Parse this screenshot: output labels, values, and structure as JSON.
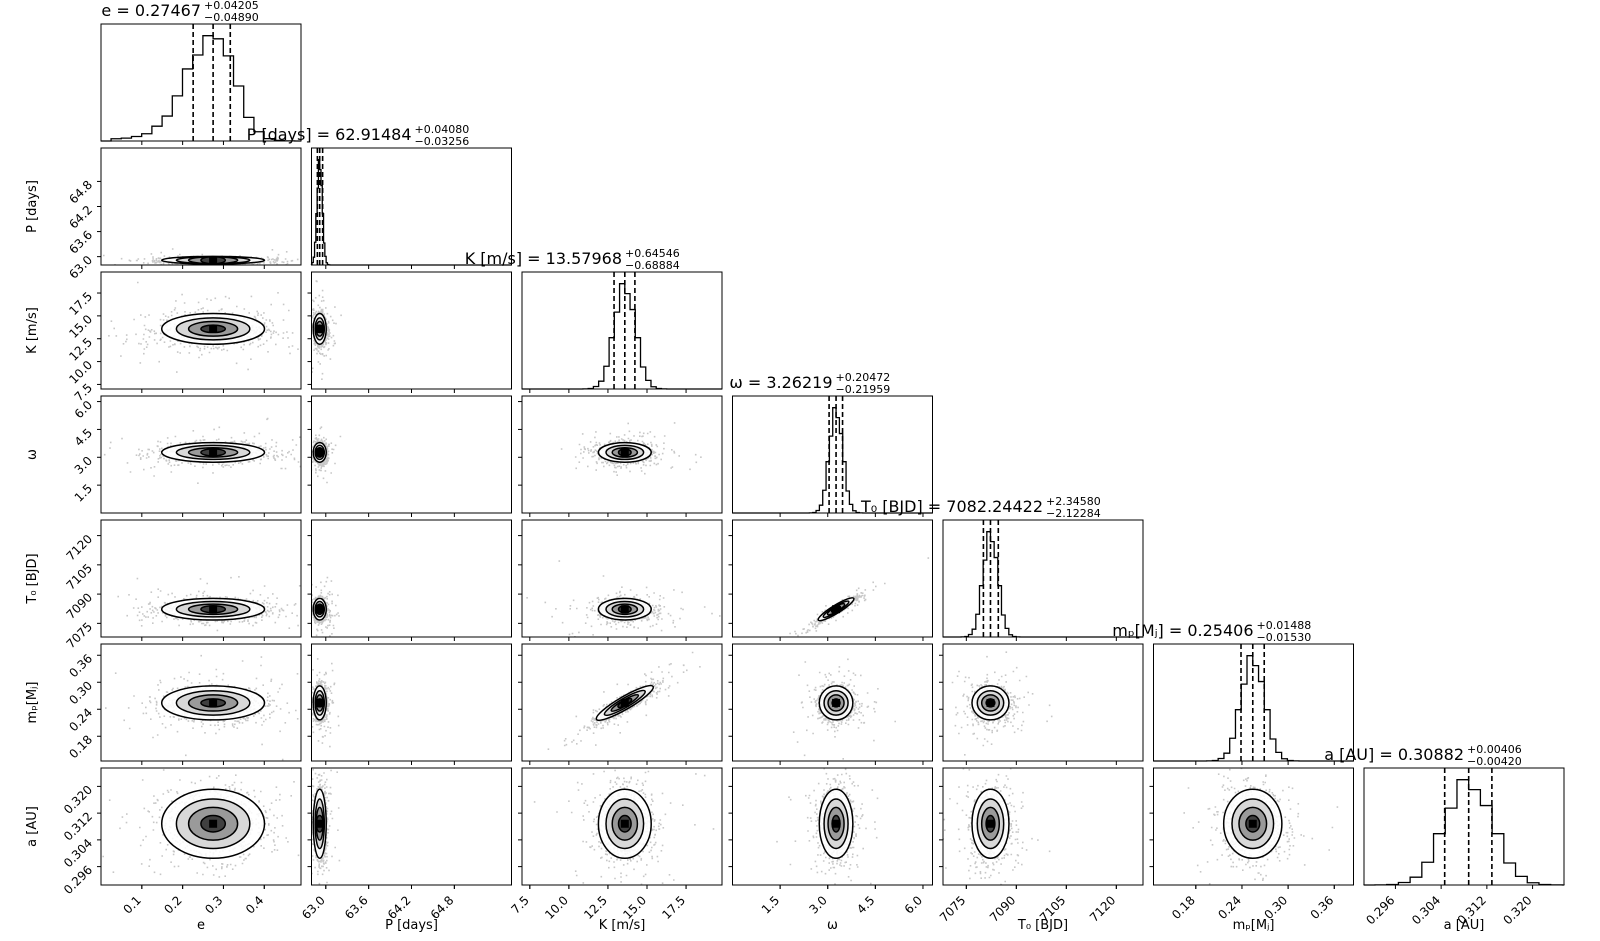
{
  "chart_data": {
    "type": "scatter",
    "subtype": "corner-plot",
    "parameters": [
      {
        "key": "e",
        "label": "e",
        "title_name": "e",
        "title_value": "0.27467",
        "err_plus": "+0.04205",
        "err_minus": "−0.04890",
        "range": [
          0.0,
          0.49
        ],
        "ticks": [
          0.1,
          0.2,
          0.3,
          0.4
        ],
        "tick_labels": [
          "0.1",
          "0.2",
          "0.3",
          "0.4"
        ],
        "median": 0.27467,
        "q16": 0.22577,
        "q84": 0.31672,
        "sigma": 0.05,
        "skew": -0.4
      },
      {
        "key": "P",
        "label": "P [days]",
        "title_name": "P [days]",
        "title_value": "62.91484",
        "err_plus": "+0.04080",
        "err_minus": "−0.03256",
        "range": [
          62.8,
          65.6
        ],
        "ticks": [
          63.0,
          63.6,
          64.2,
          64.8
        ],
        "tick_labels": [
          "63.0",
          "63.6",
          "64.2",
          "64.8"
        ],
        "median": 62.91484,
        "q16": 62.88228,
        "q84": 62.95564,
        "sigma": 0.036,
        "skew": 0
      },
      {
        "key": "K",
        "label": "K [m/s]",
        "title_name": "K [m/s]",
        "title_value": "13.57968",
        "err_plus": "+0.64546",
        "err_minus": "−0.68884",
        "range": [
          7.0,
          19.8
        ],
        "ticks": [
          7.5,
          10.0,
          12.5,
          15.0,
          17.5
        ],
        "tick_labels": [
          "7.5",
          "10.0",
          "12.5",
          "15.0",
          "17.5"
        ],
        "median": 13.57968,
        "q16": 12.89084,
        "q84": 14.22514,
        "sigma": 0.67,
        "skew": 0
      },
      {
        "key": "w",
        "label": "ω",
        "title_name": "ω",
        "title_value": "3.26219",
        "err_plus": "+0.20472",
        "err_minus": "−0.21959",
        "range": [
          0.0,
          6.3
        ],
        "ticks": [
          1.5,
          3.0,
          4.5,
          6.0
        ],
        "tick_labels": [
          "1.5",
          "3.0",
          "4.5",
          "6.0"
        ],
        "median": 3.26219,
        "q16": 3.0426,
        "q84": 3.46691,
        "sigma": 0.21,
        "skew": 0
      },
      {
        "key": "T0",
        "label": "T₀ [BJD]",
        "title_name": "T₀ [BJD]",
        "title_value": "7082.24422",
        "err_plus": "+2.34580",
        "err_minus": "−2.12284",
        "range": [
          7068.0,
          7128.0
        ],
        "ticks": [
          7075,
          7090,
          7105,
          7120
        ],
        "tick_labels": [
          "7075",
          "7090",
          "7105",
          "7120"
        ],
        "median": 7082.24422,
        "q16": 7080.12138,
        "q84": 7084.59002,
        "sigma": 2.2,
        "skew": 0
      },
      {
        "key": "mp",
        "label": "mₚ[Mⱼ]",
        "title_name": "mₚ[Mⱼ]",
        "title_value": "0.25406",
        "err_plus": "+0.01488",
        "err_minus": "−0.01530",
        "range": [
          0.125,
          0.385
        ],
        "ticks": [
          0.18,
          0.24,
          0.3,
          0.36
        ],
        "tick_labels": [
          "0.18",
          "0.24",
          "0.30",
          "0.36"
        ],
        "median": 0.25406,
        "q16": 0.23876,
        "q84": 0.26894,
        "sigma": 0.015,
        "skew": 0
      },
      {
        "key": "a",
        "label": "a [AU]",
        "title_name": "a [AU]",
        "title_value": "0.30882",
        "err_plus": "+0.00406",
        "err_minus": "−0.00420",
        "range": [
          0.2905,
          0.3255
        ],
        "ticks": [
          0.296,
          0.304,
          0.312,
          0.32
        ],
        "tick_labels": [
          "0.296",
          "0.304",
          "0.312",
          "0.320"
        ],
        "median": 0.30882,
        "q16": 0.30462,
        "q84": 0.31288,
        "sigma": 0.0041,
        "skew": 0
      }
    ],
    "correlations": {
      "2-5": 0.9,
      "3-4": 0.95
    },
    "quantile_lines": "dashed",
    "contours": true,
    "grid": false
  }
}
